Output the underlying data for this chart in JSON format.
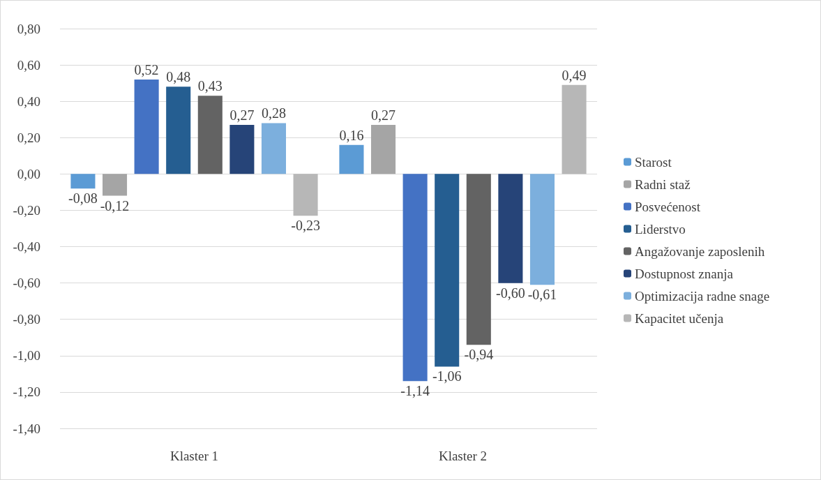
{
  "chart_data": {
    "type": "bar",
    "categories": [
      "Klaster 1",
      "Klaster 2"
    ],
    "series": [
      {
        "name": "Starost",
        "color": "#5b9bd5",
        "values": [
          -0.08,
          0.16
        ],
        "value_labels": [
          "-0,08",
          "0,16"
        ]
      },
      {
        "name": "Radni staž",
        "color": "#a5a5a5",
        "values": [
          -0.12,
          0.27
        ],
        "value_labels": [
          "-0,12",
          "0,27"
        ]
      },
      {
        "name": "Posvećenost",
        "color": "#4472c4",
        "values": [
          0.52,
          -1.14
        ],
        "value_labels": [
          "0,52",
          "-1,14"
        ]
      },
      {
        "name": "Liderstvo",
        "color": "#255e91",
        "values": [
          0.48,
          -1.06
        ],
        "value_labels": [
          "0,48",
          "-1,06"
        ]
      },
      {
        "name": "Angažovanje zaposlenih",
        "color": "#636363",
        "values": [
          0.43,
          -0.94
        ],
        "value_labels": [
          "0,43",
          "-0,94"
        ]
      },
      {
        "name": "Dostupnost znanja",
        "color": "#264478",
        "values": [
          0.27,
          -0.6
        ],
        "value_labels": [
          "0,27",
          "-0,60"
        ]
      },
      {
        "name": "Optimizacija radne snage",
        "color": "#7cafdd",
        "values": [
          0.28,
          -0.61
        ],
        "value_labels": [
          "0,28",
          "-0,61"
        ]
      },
      {
        "name": "Kapacitet učenja",
        "color": "#b7b7b7",
        "values": [
          -0.23,
          0.49
        ],
        "value_labels": [
          "-0,23",
          "0,49"
        ]
      }
    ],
    "ylim": [
      -1.4,
      0.8
    ],
    "yticks": [
      {
        "value": -1.4,
        "label": "-1,40"
      },
      {
        "value": -1.2,
        "label": "-1,20"
      },
      {
        "value": -1,
        "label": "-1,00"
      },
      {
        "value": -0.8,
        "label": "-0,80"
      },
      {
        "value": -0.6,
        "label": "-0,60"
      },
      {
        "value": -0.4,
        "label": "-0,40"
      },
      {
        "value": -0.2,
        "label": "-0,20"
      },
      {
        "value": 0,
        "label": "0,00"
      },
      {
        "value": 0.2,
        "label": "0,20"
      },
      {
        "value": 0.4,
        "label": "0,40"
      },
      {
        "value": 0.6,
        "label": "0,60"
      },
      {
        "value": 0.8,
        "label": "0,80"
      }
    ],
    "grid": "y",
    "legend": "right"
  }
}
